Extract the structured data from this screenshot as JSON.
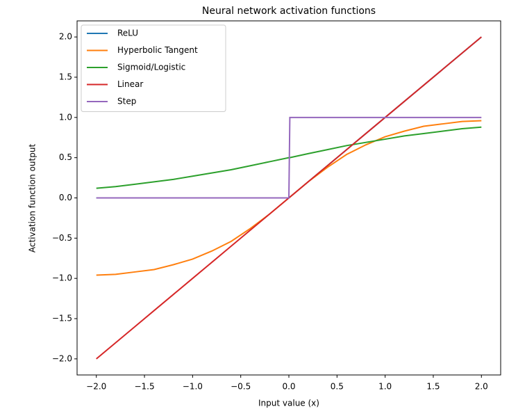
{
  "chart_data": {
    "type": "line",
    "title": "Neural network activation functions",
    "x_label": "Input value (x)",
    "y_label": "Activation function output",
    "x": [
      -2,
      -1.8,
      -1.6,
      -1.4,
      -1.2,
      -1,
      -0.8,
      -0.6,
      -0.4,
      -0.2,
      0,
      0.01,
      0.2,
      0.4,
      0.6,
      0.8,
      1,
      1.2,
      1.4,
      1.6,
      1.8,
      2
    ],
    "series": [
      {
        "name": "ReLU",
        "color": "#1f77b4",
        "values": [
          0,
          0,
          0,
          0,
          0,
          0,
          0,
          0,
          0,
          0,
          0,
          0.01,
          0.2,
          0.4,
          0.6,
          0.8,
          1,
          1.2,
          1.4,
          1.6,
          1.8,
          2
        ]
      },
      {
        "name": "Hyperbolic Tangent",
        "color": "#ff7f0e",
        "values": [
          -0.96,
          -0.95,
          -0.92,
          -0.89,
          -0.83,
          -0.76,
          -0.66,
          -0.54,
          -0.38,
          -0.2,
          0,
          0.01,
          0.2,
          0.38,
          0.54,
          0.66,
          0.76,
          0.83,
          0.89,
          0.92,
          0.95,
          0.96
        ]
      },
      {
        "name": "Sigmoid/Logistic",
        "color": "#2ca02c",
        "values": [
          0.12,
          0.14,
          0.17,
          0.2,
          0.23,
          0.27,
          0.31,
          0.35,
          0.4,
          0.45,
          0.5,
          0.5,
          0.55,
          0.6,
          0.65,
          0.69,
          0.73,
          0.77,
          0.8,
          0.83,
          0.86,
          0.88
        ]
      },
      {
        "name": "Linear",
        "color": "#d62728",
        "values": [
          -2,
          -1.8,
          -1.6,
          -1.4,
          -1.2,
          -1,
          -0.8,
          -0.6,
          -0.4,
          -0.2,
          0,
          0.01,
          0.2,
          0.4,
          0.6,
          0.8,
          1,
          1.2,
          1.4,
          1.6,
          1.8,
          2
        ]
      },
      {
        "name": "Step",
        "color": "#9467bd",
        "values": [
          0,
          0,
          0,
          0,
          0,
          0,
          0,
          0,
          0,
          0,
          0,
          1,
          1,
          1,
          1,
          1,
          1,
          1,
          1,
          1,
          1,
          1
        ]
      }
    ],
    "xlim": [
      -2.2,
      2.2
    ],
    "ylim": [
      -2.2,
      2.2
    ],
    "xticks": [
      {
        "value": -2,
        "label": "−2.0"
      },
      {
        "value": -1.5,
        "label": "−1.5"
      },
      {
        "value": -1,
        "label": "−1.0"
      },
      {
        "value": -0.5,
        "label": "−0.5"
      },
      {
        "value": 0,
        "label": "0.0"
      },
      {
        "value": 0.5,
        "label": "0.5"
      },
      {
        "value": 1,
        "label": "1.0"
      },
      {
        "value": 1.5,
        "label": "1.5"
      },
      {
        "value": 2,
        "label": "2.0"
      }
    ],
    "yticks": [
      {
        "value": -2,
        "label": "−2.0"
      },
      {
        "value": -1.5,
        "label": "−1.5"
      },
      {
        "value": -1,
        "label": "−1.0"
      },
      {
        "value": -0.5,
        "label": "−0.5"
      },
      {
        "value": 0,
        "label": "0.0"
      },
      {
        "value": 0.5,
        "label": "0.5"
      },
      {
        "value": 1,
        "label": "1.0"
      },
      {
        "value": 1.5,
        "label": "1.5"
      },
      {
        "value": 2,
        "label": "2.0"
      }
    ],
    "grid": false,
    "legend": "upper left"
  }
}
